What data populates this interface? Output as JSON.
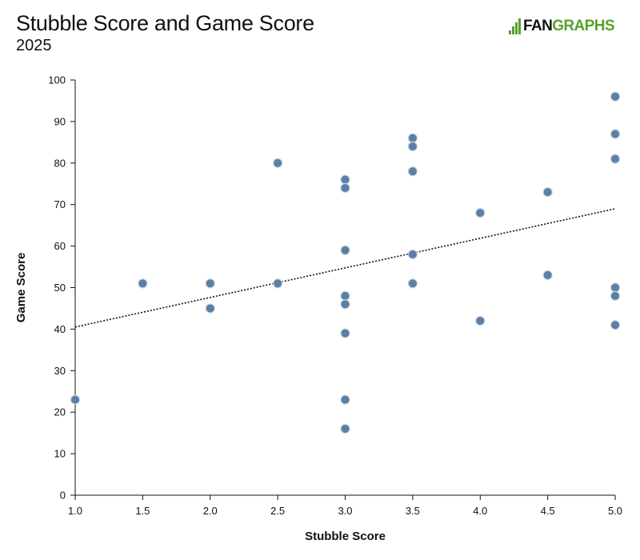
{
  "header": {
    "title": "Stubble Score and Game Score",
    "subtitle": "2025"
  },
  "logo": {
    "part1": "FAN",
    "part2": "GRAPHS",
    "accent_color": "#5aa02c"
  },
  "colors": {
    "point_fill": "#5b7fa6",
    "point_stroke": "#cfd8e3",
    "trend_line": "#111111"
  },
  "chart_data": {
    "type": "scatter",
    "title": "Stubble Score and Game Score",
    "subtitle": "2025",
    "xlabel": "Stubble Score",
    "ylabel": "Game Score",
    "xlim": [
      1.0,
      5.0
    ],
    "ylim": [
      0,
      100
    ],
    "x_ticks": [
      "1.0",
      "1.5",
      "2.0",
      "2.5",
      "3.0",
      "3.5",
      "4.0",
      "4.5",
      "5.0"
    ],
    "y_ticks": [
      "0",
      "10",
      "20",
      "30",
      "40",
      "50",
      "60",
      "70",
      "80",
      "90",
      "100"
    ],
    "grid": false,
    "points": [
      {
        "x": 1.0,
        "y": 23
      },
      {
        "x": 1.5,
        "y": 51
      },
      {
        "x": 2.0,
        "y": 51
      },
      {
        "x": 2.0,
        "y": 45
      },
      {
        "x": 2.5,
        "y": 80
      },
      {
        "x": 2.5,
        "y": 51
      },
      {
        "x": 3.0,
        "y": 76
      },
      {
        "x": 3.0,
        "y": 74
      },
      {
        "x": 3.0,
        "y": 59
      },
      {
        "x": 3.0,
        "y": 48
      },
      {
        "x": 3.0,
        "y": 46
      },
      {
        "x": 3.0,
        "y": 39
      },
      {
        "x": 3.0,
        "y": 23
      },
      {
        "x": 3.0,
        "y": 16
      },
      {
        "x": 3.5,
        "y": 86
      },
      {
        "x": 3.5,
        "y": 84
      },
      {
        "x": 3.5,
        "y": 78
      },
      {
        "x": 3.5,
        "y": 58
      },
      {
        "x": 3.5,
        "y": 51
      },
      {
        "x": 4.0,
        "y": 68
      },
      {
        "x": 4.0,
        "y": 42
      },
      {
        "x": 4.5,
        "y": 73
      },
      {
        "x": 4.5,
        "y": 53
      },
      {
        "x": 5.0,
        "y": 96
      },
      {
        "x": 5.0,
        "y": 87
      },
      {
        "x": 5.0,
        "y": 81
      },
      {
        "x": 5.0,
        "y": 50
      },
      {
        "x": 5.0,
        "y": 48
      },
      {
        "x": 5.0,
        "y": 41
      }
    ],
    "trendline": {
      "x": [
        1.0,
        5.0
      ],
      "y": [
        40.5,
        69
      ]
    }
  }
}
